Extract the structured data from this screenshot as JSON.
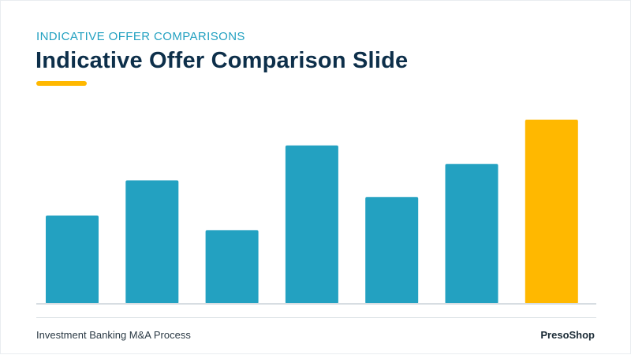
{
  "header": {
    "kicker": "INDICATIVE OFFER COMPARISONS",
    "title": "Indicative Offer Comparison Slide"
  },
  "footer": {
    "left_text": "Investment Banking M&A Process",
    "brand": "PresoShop"
  },
  "colors": {
    "primary_bar": "#23a1c1",
    "highlight_bar": "#ffb800",
    "title": "#0d2f4a",
    "kicker": "#23a1c1",
    "baseline": "#d7dde2"
  },
  "chart_data": {
    "type": "bar",
    "title": "",
    "xlabel": "",
    "ylabel": "",
    "grid": false,
    "legend": "none",
    "ylim": [
      0,
      100
    ],
    "values": [
      48,
      67,
      40,
      86,
      58,
      76,
      100
    ],
    "highlight_index": 6
  }
}
